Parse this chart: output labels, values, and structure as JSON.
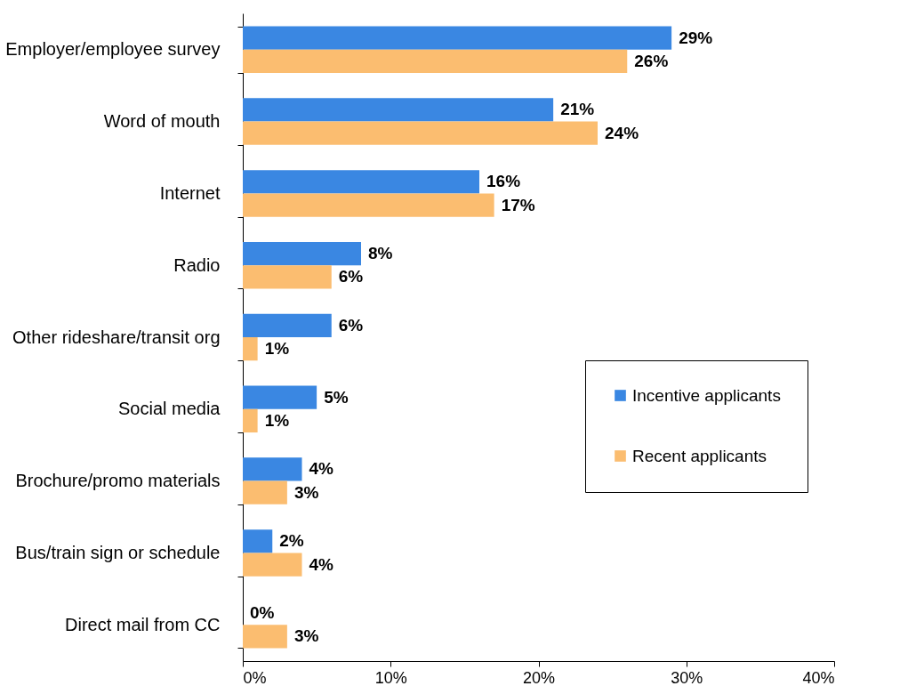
{
  "chart_data": {
    "type": "bar",
    "orientation": "horizontal",
    "categories": [
      "Employer/employee survey",
      "Word of mouth",
      "Internet",
      "Radio",
      "Other rideshare/transit org",
      "Social media",
      "Brochure/promo materials",
      "Bus/train sign or schedule",
      "Direct mail from CC"
    ],
    "series": [
      {
        "name": "Incentive applicants",
        "color": "#3a87e2",
        "values": [
          29,
          21,
          16,
          8,
          6,
          5,
          4,
          2,
          0
        ],
        "value_labels": [
          "29%",
          "21%",
          "16%",
          "8%",
          "6%",
          "5%",
          "4%",
          "2%",
          "0%"
        ]
      },
      {
        "name": "Recent applicants",
        "color": "#fbbd70",
        "values": [
          26,
          24,
          17,
          6,
          1,
          1,
          3,
          4,
          3
        ],
        "value_labels": [
          "26%",
          "24%",
          "17%",
          "6%",
          "1%",
          "1%",
          "3%",
          "4%",
          "3%"
        ]
      }
    ],
    "xlim": [
      0,
      40
    ],
    "xticks": [
      {
        "value": 0,
        "label": "0%"
      },
      {
        "value": 10,
        "label": "10%"
      },
      {
        "value": 20,
        "label": "20%"
      },
      {
        "value": 30,
        "label": "30%"
      },
      {
        "value": 40,
        "label": "40%"
      }
    ],
    "grid": false,
    "legend": "right"
  }
}
